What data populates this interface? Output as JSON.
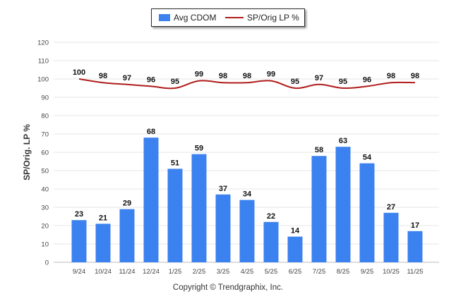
{
  "legend": {
    "bar_label": "Avg CDOM",
    "line_label": "SP/Orig LP %"
  },
  "copyright": "Copyright © Trendgraphix, Inc.",
  "colors": {
    "bar": "#3b82f0",
    "line": "#b01c1c",
    "grid": "#e6e6e6"
  },
  "chart_data": {
    "type": "bar",
    "title": "",
    "xlabel": "",
    "ylabel": "SP/Orig. LP %",
    "ylim": [
      0,
      120
    ],
    "yticks": [
      0,
      10,
      20,
      30,
      40,
      50,
      60,
      70,
      80,
      90,
      100,
      110,
      120
    ],
    "categories": [
      "9/24",
      "10/24",
      "11/24",
      "12/24",
      "1/25",
      "2/25",
      "3/25",
      "4/25",
      "5/25",
      "6/25",
      "7/25",
      "8/25",
      "9/25",
      "10/25",
      "11/25"
    ],
    "series": [
      {
        "name": "Avg CDOM",
        "type": "bar",
        "values": [
          23,
          21,
          29,
          68,
          51,
          59,
          37,
          34,
          22,
          14,
          58,
          63,
          54,
          27,
          17
        ]
      },
      {
        "name": "SP/Orig LP %",
        "type": "line",
        "values": [
          100,
          98,
          97,
          96,
          95,
          99,
          98,
          98,
          99,
          95,
          97,
          95,
          96,
          98,
          98
        ]
      }
    ]
  }
}
